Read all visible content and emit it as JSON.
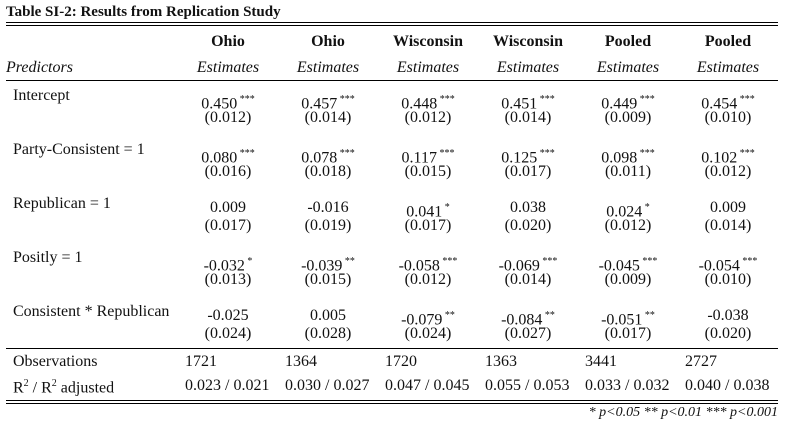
{
  "caption": "Table SI-2: Results from Replication Study",
  "columns": [
    {
      "group": "Ohio",
      "sub": "Estimates"
    },
    {
      "group": "Ohio",
      "sub": "Estimates"
    },
    {
      "group": "Wisconsin",
      "sub": "Estimates"
    },
    {
      "group": "Wisconsin",
      "sub": "Estimates"
    },
    {
      "group": "Pooled",
      "sub": "Estimates"
    },
    {
      "group": "Pooled",
      "sub": "Estimates"
    }
  ],
  "predictors_label": "Predictors",
  "rows": [
    {
      "label": "Intercept",
      "cells": [
        {
          "est": "0.450",
          "sig": "***",
          "se": "(0.012)"
        },
        {
          "est": "0.457",
          "sig": "***",
          "se": "(0.014)"
        },
        {
          "est": "0.448",
          "sig": "***",
          "se": "(0.012)"
        },
        {
          "est": "0.451",
          "sig": "***",
          "se": "(0.014)"
        },
        {
          "est": "0.449",
          "sig": "***",
          "se": "(0.009)"
        },
        {
          "est": "0.454",
          "sig": "***",
          "se": "(0.010)"
        }
      ]
    },
    {
      "label": "Party-Consistent = 1",
      "cells": [
        {
          "est": "0.080",
          "sig": "***",
          "se": "(0.016)"
        },
        {
          "est": "0.078",
          "sig": "***",
          "se": "(0.018)"
        },
        {
          "est": "0.117",
          "sig": "***",
          "se": "(0.015)"
        },
        {
          "est": "0.125",
          "sig": "***",
          "se": "(0.017)"
        },
        {
          "est": "0.098",
          "sig": "***",
          "se": "(0.011)"
        },
        {
          "est": "0.102",
          "sig": "***",
          "se": "(0.012)"
        }
      ]
    },
    {
      "label": "Republican = 1",
      "cells": [
        {
          "est": "0.009",
          "sig": "",
          "se": "(0.017)"
        },
        {
          "est": "-0.016",
          "sig": "",
          "se": "(0.019)"
        },
        {
          "est": "0.041",
          "sig": "*",
          "se": "(0.017)"
        },
        {
          "est": "0.038",
          "sig": "",
          "se": "(0.020)"
        },
        {
          "est": "0.024",
          "sig": "*",
          "se": "(0.012)"
        },
        {
          "est": "0.009",
          "sig": "",
          "se": "(0.014)"
        }
      ]
    },
    {
      "label": "Positly = 1",
      "cells": [
        {
          "est": "-0.032",
          "sig": "*",
          "se": "(0.013)"
        },
        {
          "est": "-0.039",
          "sig": "**",
          "se": "(0.015)"
        },
        {
          "est": "-0.058",
          "sig": "***",
          "se": "(0.012)"
        },
        {
          "est": "-0.069",
          "sig": "***",
          "se": "(0.014)"
        },
        {
          "est": "-0.045",
          "sig": "***",
          "se": "(0.009)"
        },
        {
          "est": "-0.054",
          "sig": "***",
          "se": "(0.010)"
        }
      ]
    },
    {
      "label": "Consistent * Republican",
      "cells": [
        {
          "est": "-0.025",
          "sig": "",
          "se": "(0.024)"
        },
        {
          "est": "0.005",
          "sig": "",
          "se": "(0.028)"
        },
        {
          "est": "-0.079",
          "sig": "**",
          "se": "(0.024)"
        },
        {
          "est": "-0.084",
          "sig": "**",
          "se": "(0.027)"
        },
        {
          "est": "-0.051",
          "sig": "**",
          "se": "(0.017)"
        },
        {
          "est": "-0.038",
          "sig": "",
          "se": "(0.020)"
        }
      ]
    }
  ],
  "observations": {
    "label": "Observations",
    "values": [
      "1721",
      "1364",
      "1720",
      "1363",
      "3441",
      "2727"
    ]
  },
  "r2": {
    "label_r": "R",
    "label_sup": "2",
    "label_mid": " / R",
    "label_sup2": "2",
    "label_end": " adjusted",
    "values": [
      "0.023 / 0.021",
      "0.030 / 0.027",
      "0.047 / 0.045",
      "0.055 / 0.053",
      "0.033 / 0.032",
      "0.040 / 0.038"
    ]
  },
  "footnote": "* p<0.05   ** p<0.01   *** p<0.001"
}
